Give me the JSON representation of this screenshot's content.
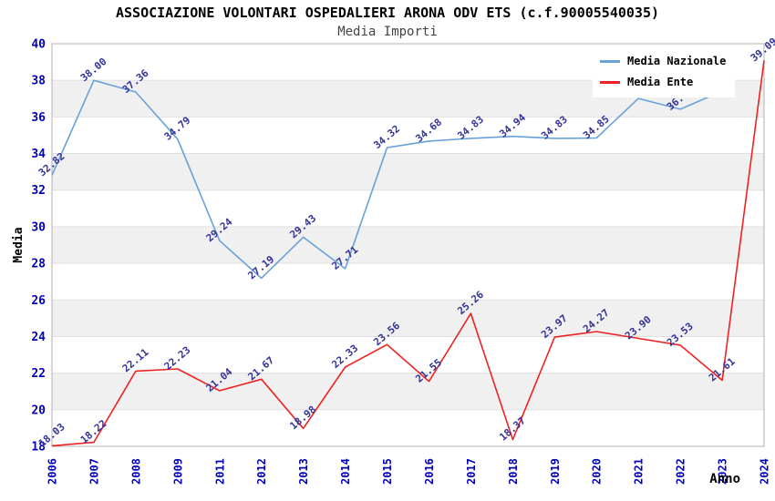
{
  "header": {
    "title": "ASSOCIAZIONE VOLONTARI OSPEDALIERI ARONA ODV ETS (c.f.90005540035)",
    "subtitle": "Media Importi"
  },
  "chart_data": {
    "type": "line",
    "title": "ASSOCIAZIONE VOLONTARI OSPEDALIERI ARONA ODV ETS (c.f.90005540035)",
    "subtitle": "Media Importi",
    "xlabel": "Anno",
    "ylabel": "Media",
    "ylim": [
      18,
      40
    ],
    "ytick_step": 2,
    "grid": "horizontal-bands",
    "legend_position": "top-right",
    "x": [
      "2006",
      "2007",
      "2008",
      "2009",
      "2011",
      "2012",
      "2013",
      "2014",
      "2015",
      "2016",
      "2017",
      "2018",
      "2019",
      "2020",
      "2021",
      "2022",
      "2023",
      "2024"
    ],
    "series": [
      {
        "name": "Media Nazionale",
        "color": "#69a1d8",
        "values": [
          32.82,
          38.0,
          37.36,
          34.79,
          29.24,
          27.19,
          29.43,
          27.71,
          34.32,
          34.68,
          34.83,
          34.94,
          34.83,
          34.85,
          37.01,
          36.42,
          37.41,
          null
        ],
        "labels": [
          "32.82",
          "38.00",
          "37.36",
          "34.79",
          "29.24",
          "27.19",
          "29.43",
          "27.71",
          "34.32",
          "34.68",
          "34.83",
          "34.94",
          "34.83",
          "34.85",
          "",
          "36.42",
          "",
          ""
        ]
      },
      {
        "name": "Media Ente",
        "color": "#ee2222",
        "values": [
          18.03,
          18.22,
          22.11,
          22.23,
          21.04,
          21.67,
          18.98,
          22.33,
          23.56,
          21.55,
          25.26,
          18.37,
          23.97,
          24.27,
          23.9,
          23.53,
          21.61,
          39.09
        ],
        "labels": [
          "18.03",
          "18.22",
          "22.11",
          "22.23",
          "21.04",
          "21.67",
          "18.98",
          "22.33",
          "23.56",
          "21.55",
          "25.26",
          "18.37",
          "23.97",
          "24.27",
          "23.90",
          "23.53",
          "21.61",
          "39.09"
        ]
      }
    ],
    "colors": {
      "band": "#f0f0f0",
      "grid": "#e0e0e0",
      "border": "#b0b0b0",
      "tick_labels": "#0000bb",
      "data_labels": "#333399",
      "axis_titles": "#000000"
    }
  }
}
